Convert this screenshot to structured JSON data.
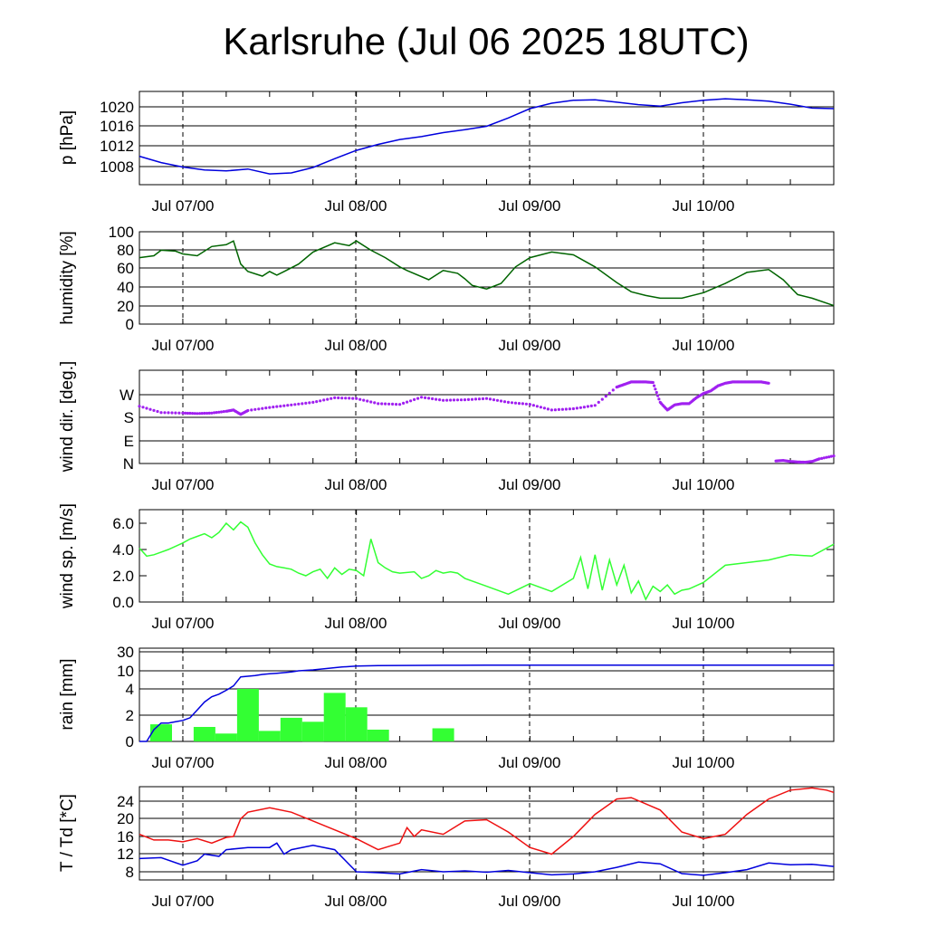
{
  "title": "Karlsruhe (Jul 06 2025 18UTC)",
  "x_tick_labels": [
    "Jul 07/00",
    "Jul 08/00",
    "Jul 09/00",
    "Jul 10/00"
  ],
  "colors": {
    "pressure": "#0000dd",
    "humidity": "#006400",
    "wind_dir": "#a020f0",
    "wind_speed": "#33ff33",
    "rain_bars": "#33ff33",
    "rain_sum": "#0000dd",
    "temperature": "#ee1111",
    "dewpoint": "#0000dd"
  },
  "chart_data": [
    {
      "type": "line",
      "ylabel": "p [hPa]",
      "y_ticks": [
        "1008",
        "1012",
        "1016",
        "1020"
      ],
      "ylim": [
        1004,
        1023
      ],
      "grid": true,
      "x_hours": [
        0,
        3,
        6,
        9,
        12,
        15,
        18,
        21,
        24,
        27,
        30,
        33,
        36,
        39,
        42,
        45,
        48,
        51,
        54,
        57,
        60,
        63,
        66,
        69,
        72,
        75,
        78,
        81,
        84,
        87,
        90,
        93,
        96
      ],
      "series": [
        {
          "values": [
            1009.8,
            1008.5,
            1007.6,
            1007.0,
            1006.8,
            1007.2,
            1006.2,
            1006.4,
            1007.5,
            1009.3,
            1011.0,
            1012.2,
            1013.2,
            1013.8,
            1014.6,
            1015.2,
            1015.9,
            1017.6,
            1019.5,
            1020.6,
            1021.2,
            1021.3,
            1020.8,
            1020.3,
            1020.0,
            1020.7,
            1021.2,
            1021.5,
            1021.3,
            1021.0,
            1020.4,
            1019.6,
            1019.5
          ]
        }
      ]
    },
    {
      "type": "line",
      "ylabel": "humidity [%]",
      "y_ticks": [
        "0",
        "20",
        "40",
        "60",
        "80",
        "100"
      ],
      "ylim": [
        0,
        100
      ],
      "grid": true,
      "x_hours": [
        0,
        2,
        3,
        5,
        6,
        8,
        10,
        12,
        13,
        14,
        15,
        17,
        18,
        19,
        20,
        22,
        24,
        27,
        29,
        30,
        32,
        34,
        36,
        37,
        40,
        42,
        44,
        45,
        46,
        48,
        50,
        52,
        54,
        57,
        60,
        63,
        66,
        68,
        70,
        72,
        75,
        78,
        81,
        83,
        84,
        87,
        89,
        91,
        93,
        96
      ],
      "series": [
        {
          "values": [
            72,
            74,
            80,
            79,
            76,
            74,
            84,
            86,
            90,
            65,
            57,
            52,
            57,
            53,
            57,
            65,
            78,
            88,
            85,
            90,
            80,
            72,
            62,
            58,
            48,
            58,
            55,
            49,
            42,
            38,
            44,
            62,
            72,
            78,
            75,
            62,
            45,
            35,
            31,
            28,
            28,
            34,
            44,
            52,
            56,
            59,
            48,
            32,
            28,
            20
          ]
        }
      ]
    },
    {
      "type": "scatter",
      "ylabel": "wind dir. [deg.]",
      "y_ticks": [
        "N",
        "E",
        "S",
        "W"
      ],
      "ylim": [
        0,
        320
      ],
      "grid": true,
      "x_hours": [
        0,
        3,
        6,
        8,
        10,
        12,
        13,
        14,
        15,
        18,
        21,
        24,
        27,
        30,
        33,
        36,
        39,
        42,
        45,
        48,
        51,
        54,
        57,
        60,
        63,
        66,
        67,
        68,
        69,
        70,
        71,
        72,
        73,
        74,
        75,
        76,
        77,
        78,
        79,
        80,
        81,
        82,
        83,
        84,
        85,
        86,
        87,
        88,
        89,
        90,
        91,
        92,
        93,
        94,
        96
      ],
      "series": [
        {
          "values": [
            225,
            200,
            198,
            196,
            198,
            205,
            210,
            193,
            208,
            220,
            230,
            240,
            258,
            255,
            235,
            232,
            260,
            248,
            250,
            255,
            240,
            232,
            210,
            215,
            228,
            300,
            310,
            320,
            320,
            320,
            318,
            240,
            210,
            230,
            235,
            235,
            258,
            275,
            285,
            305,
            315,
            320,
            320,
            320,
            320,
            320,
            315,
            10,
            12,
            8,
            6,
            5,
            8,
            18,
            30
          ]
        }
      ]
    },
    {
      "type": "line",
      "ylabel": "wind sp. [m/s]",
      "y_ticks": [
        "0.0",
        "2.0",
        "4.0",
        "6.0"
      ],
      "ylim": [
        0,
        7
      ],
      "grid": false,
      "x_hours": [
        0,
        1,
        2,
        3,
        4,
        6,
        7,
        8,
        9,
        10,
        11,
        12,
        13,
        14,
        15,
        16,
        17,
        18,
        19,
        20,
        21,
        22,
        23,
        24,
        25,
        26,
        27,
        28,
        29,
        30,
        31,
        32,
        33,
        34,
        35,
        36,
        38,
        39,
        40,
        41,
        42,
        43,
        44,
        45,
        48,
        51,
        54,
        57,
        60,
        61,
        62,
        63,
        64,
        65,
        66,
        67,
        68,
        69,
        70,
        71,
        72,
        73,
        74,
        75,
        76,
        78,
        81,
        84,
        87,
        90,
        93,
        96
      ],
      "series": [
        {
          "values": [
            4.1,
            3.5,
            3.6,
            3.8,
            4.0,
            4.5,
            4.8,
            5.0,
            5.2,
            4.9,
            5.3,
            6.0,
            5.5,
            6.1,
            5.7,
            4.5,
            3.6,
            2.9,
            2.7,
            2.6,
            2.5,
            2.2,
            2.0,
            2.3,
            2.5,
            1.8,
            2.6,
            2.1,
            2.5,
            2.4,
            2.0,
            4.8,
            3.0,
            2.6,
            2.3,
            2.2,
            2.3,
            1.8,
            2.0,
            2.4,
            2.2,
            2.3,
            2.2,
            1.8,
            1.2,
            0.6,
            1.4,
            0.8,
            1.8,
            3.4,
            1.0,
            3.6,
            0.9,
            3.2,
            1.3,
            2.8,
            0.7,
            1.6,
            0.2,
            1.2,
            0.8,
            1.3,
            0.6,
            0.9,
            1.0,
            1.5,
            2.8,
            3.0,
            3.2,
            3.6,
            3.5,
            4.4
          ]
        }
      ]
    },
    {
      "type": "bar",
      "ylabel": "rain [mm]",
      "y_ticks": [
        "0",
        "2",
        "4",
        "10",
        "30"
      ],
      "y_scale": "quasi-log",
      "grid": true,
      "bar_hours": [
        [
          1.5,
          4.5
        ],
        [
          7.5,
          10.5
        ],
        [
          10.5,
          13.5
        ],
        [
          13.5,
          16.5
        ],
        [
          16.5,
          19.5
        ],
        [
          19.5,
          22.5
        ],
        [
          22.5,
          25.5
        ],
        [
          25.5,
          28.5
        ],
        [
          28.5,
          31.5
        ],
        [
          31.5,
          34.5
        ],
        [
          40.5,
          43.5
        ]
      ],
      "bar_values": [
        1.3,
        1.1,
        0.6,
        4.0,
        0.8,
        1.8,
        1.5,
        3.7,
        2.6,
        0.9,
        1.0
      ],
      "series": [
        {
          "name": "",
          "x_hours": [
            0,
            1,
            2,
            3,
            4,
            5,
            6,
            7,
            8,
            9,
            10,
            11,
            12,
            13,
            14,
            15,
            16,
            17,
            18,
            19,
            20,
            21,
            22,
            24,
            26,
            28,
            30,
            33,
            36,
            42,
            48,
            60,
            72,
            84,
            96
          ],
          "values": [
            0,
            0,
            0.9,
            1.4,
            1.4,
            1.5,
            1.6,
            1.8,
            2.4,
            3.0,
            3.4,
            3.6,
            3.9,
            5.0,
            8.0,
            8.2,
            8.4,
            8.8,
            9.0,
            9.2,
            9.4,
            9.6,
            10.0,
            11.0,
            12.5,
            14.0,
            15.0,
            15.4,
            15.6,
            15.8,
            15.9,
            16.0,
            16.0,
            16.0,
            16.0
          ]
        }
      ]
    },
    {
      "type": "line",
      "ylabel": "T / Td [*C]",
      "y_ticks": [
        "8",
        "12",
        "16",
        "20",
        "24"
      ],
      "ylim": [
        6,
        27
      ],
      "grid": true,
      "series": [
        {
          "x_hours": [
            0,
            2,
            4,
            6,
            8,
            10,
            12,
            13,
            14,
            15,
            18,
            21,
            24,
            27,
            30,
            33,
            36,
            37,
            38,
            39,
            42,
            45,
            48,
            51,
            54,
            57,
            60,
            63,
            66,
            68,
            72,
            75,
            78,
            81,
            84,
            87,
            90,
            93,
            95,
            96
          ],
          "values": [
            16.5,
            15.2,
            15.2,
            14.8,
            15.5,
            14.5,
            15.8,
            16.0,
            20.0,
            21.5,
            22.5,
            21.5,
            19.5,
            17.5,
            15.5,
            13.0,
            14.5,
            18.0,
            16.0,
            17.5,
            16.5,
            19.5,
            19.8,
            17.0,
            13.5,
            12.0,
            16.0,
            21.0,
            24.5,
            24.8,
            22.0,
            17.0,
            15.5,
            16.5,
            21.0,
            24.5,
            26.5,
            27.0,
            26.5,
            26.0
          ]
        },
        {
          "x_hours": [
            0,
            3,
            6,
            8,
            9,
            11,
            12,
            15,
            18,
            19,
            20,
            21,
            24,
            27,
            30,
            33,
            36,
            39,
            42,
            45,
            48,
            51,
            54,
            57,
            60,
            63,
            66,
            69,
            72,
            75,
            78,
            81,
            84,
            87,
            90,
            93,
            96
          ],
          "values": [
            11.0,
            11.2,
            9.5,
            10.5,
            12.0,
            11.5,
            13.0,
            13.5,
            13.5,
            14.5,
            12.0,
            13.0,
            14.0,
            13.0,
            8.0,
            7.8,
            7.5,
            8.5,
            8.0,
            8.2,
            7.9,
            8.3,
            7.8,
            7.3,
            7.5,
            8.0,
            9.0,
            10.2,
            9.8,
            7.6,
            7.2,
            7.8,
            8.5,
            10.0,
            9.6,
            9.7,
            9.2
          ]
        }
      ]
    }
  ]
}
